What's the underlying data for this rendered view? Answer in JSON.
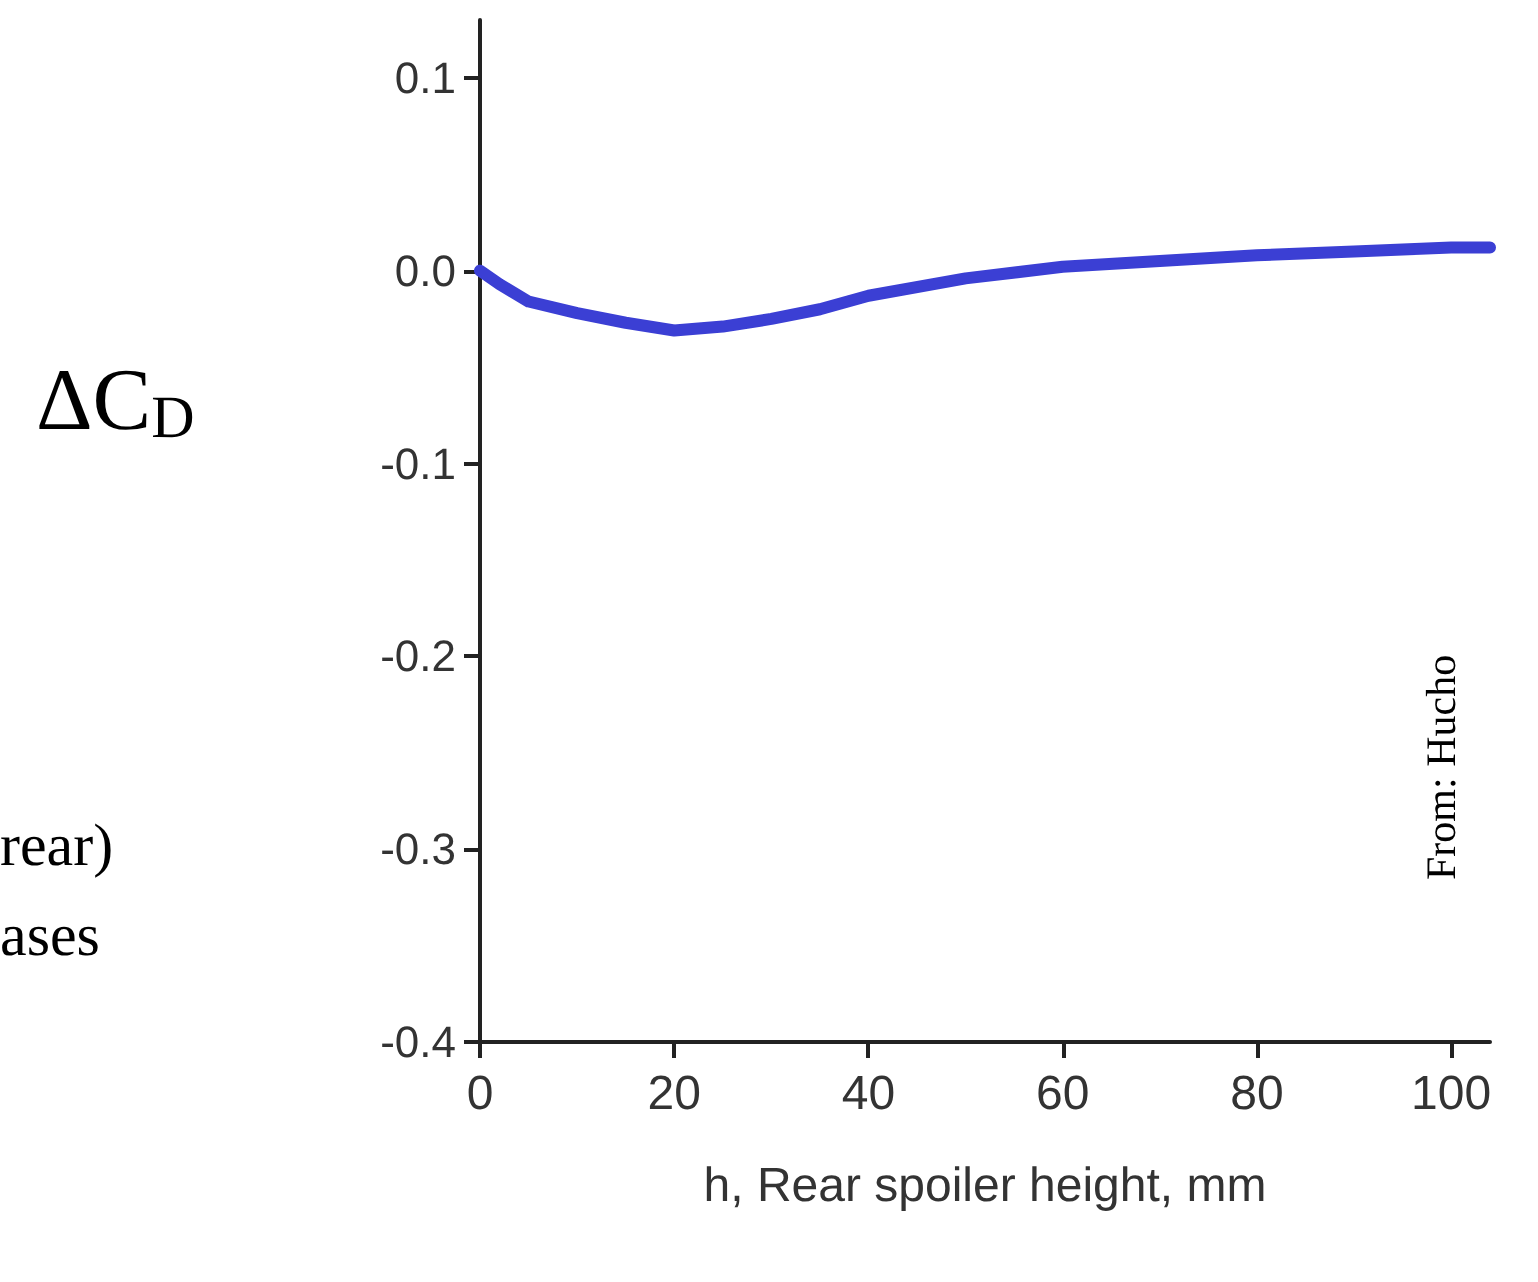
{
  "chart_data": {
    "type": "line",
    "xlabel": "h, Rear spoiler height, mm",
    "ylabel": "ΔC$_{D}$",
    "x": [
      0,
      2,
      5,
      10,
      15,
      20,
      25,
      30,
      35,
      40,
      50,
      60,
      70,
      80,
      90,
      100,
      104
    ],
    "series": [
      {
        "color": "#3b3fd4",
        "values": [
          0.0,
          -0.007,
          -0.016,
          -0.022,
          -0.027,
          -0.031,
          -0.029,
          -0.025,
          -0.02,
          -0.013,
          -0.004,
          0.002,
          0.005,
          0.008,
          0.01,
          0.012,
          0.012
        ]
      }
    ],
    "xlim": [
      0,
      104
    ],
    "xticks": [
      0,
      20,
      40,
      60,
      80,
      100
    ],
    "ylim": [
      -0.4,
      0.13
    ],
    "yticks": [
      0.1,
      {
        "value": 0,
        "label": "0.0"
      },
      -0.1,
      -0.2,
      -0.3,
      -0.4
    ],
    "grid": false,
    "marker": "none",
    "line_style": "solid",
    "annotations": [
      "rear)",
      "ases",
      "From: Hucho"
    ]
  }
}
